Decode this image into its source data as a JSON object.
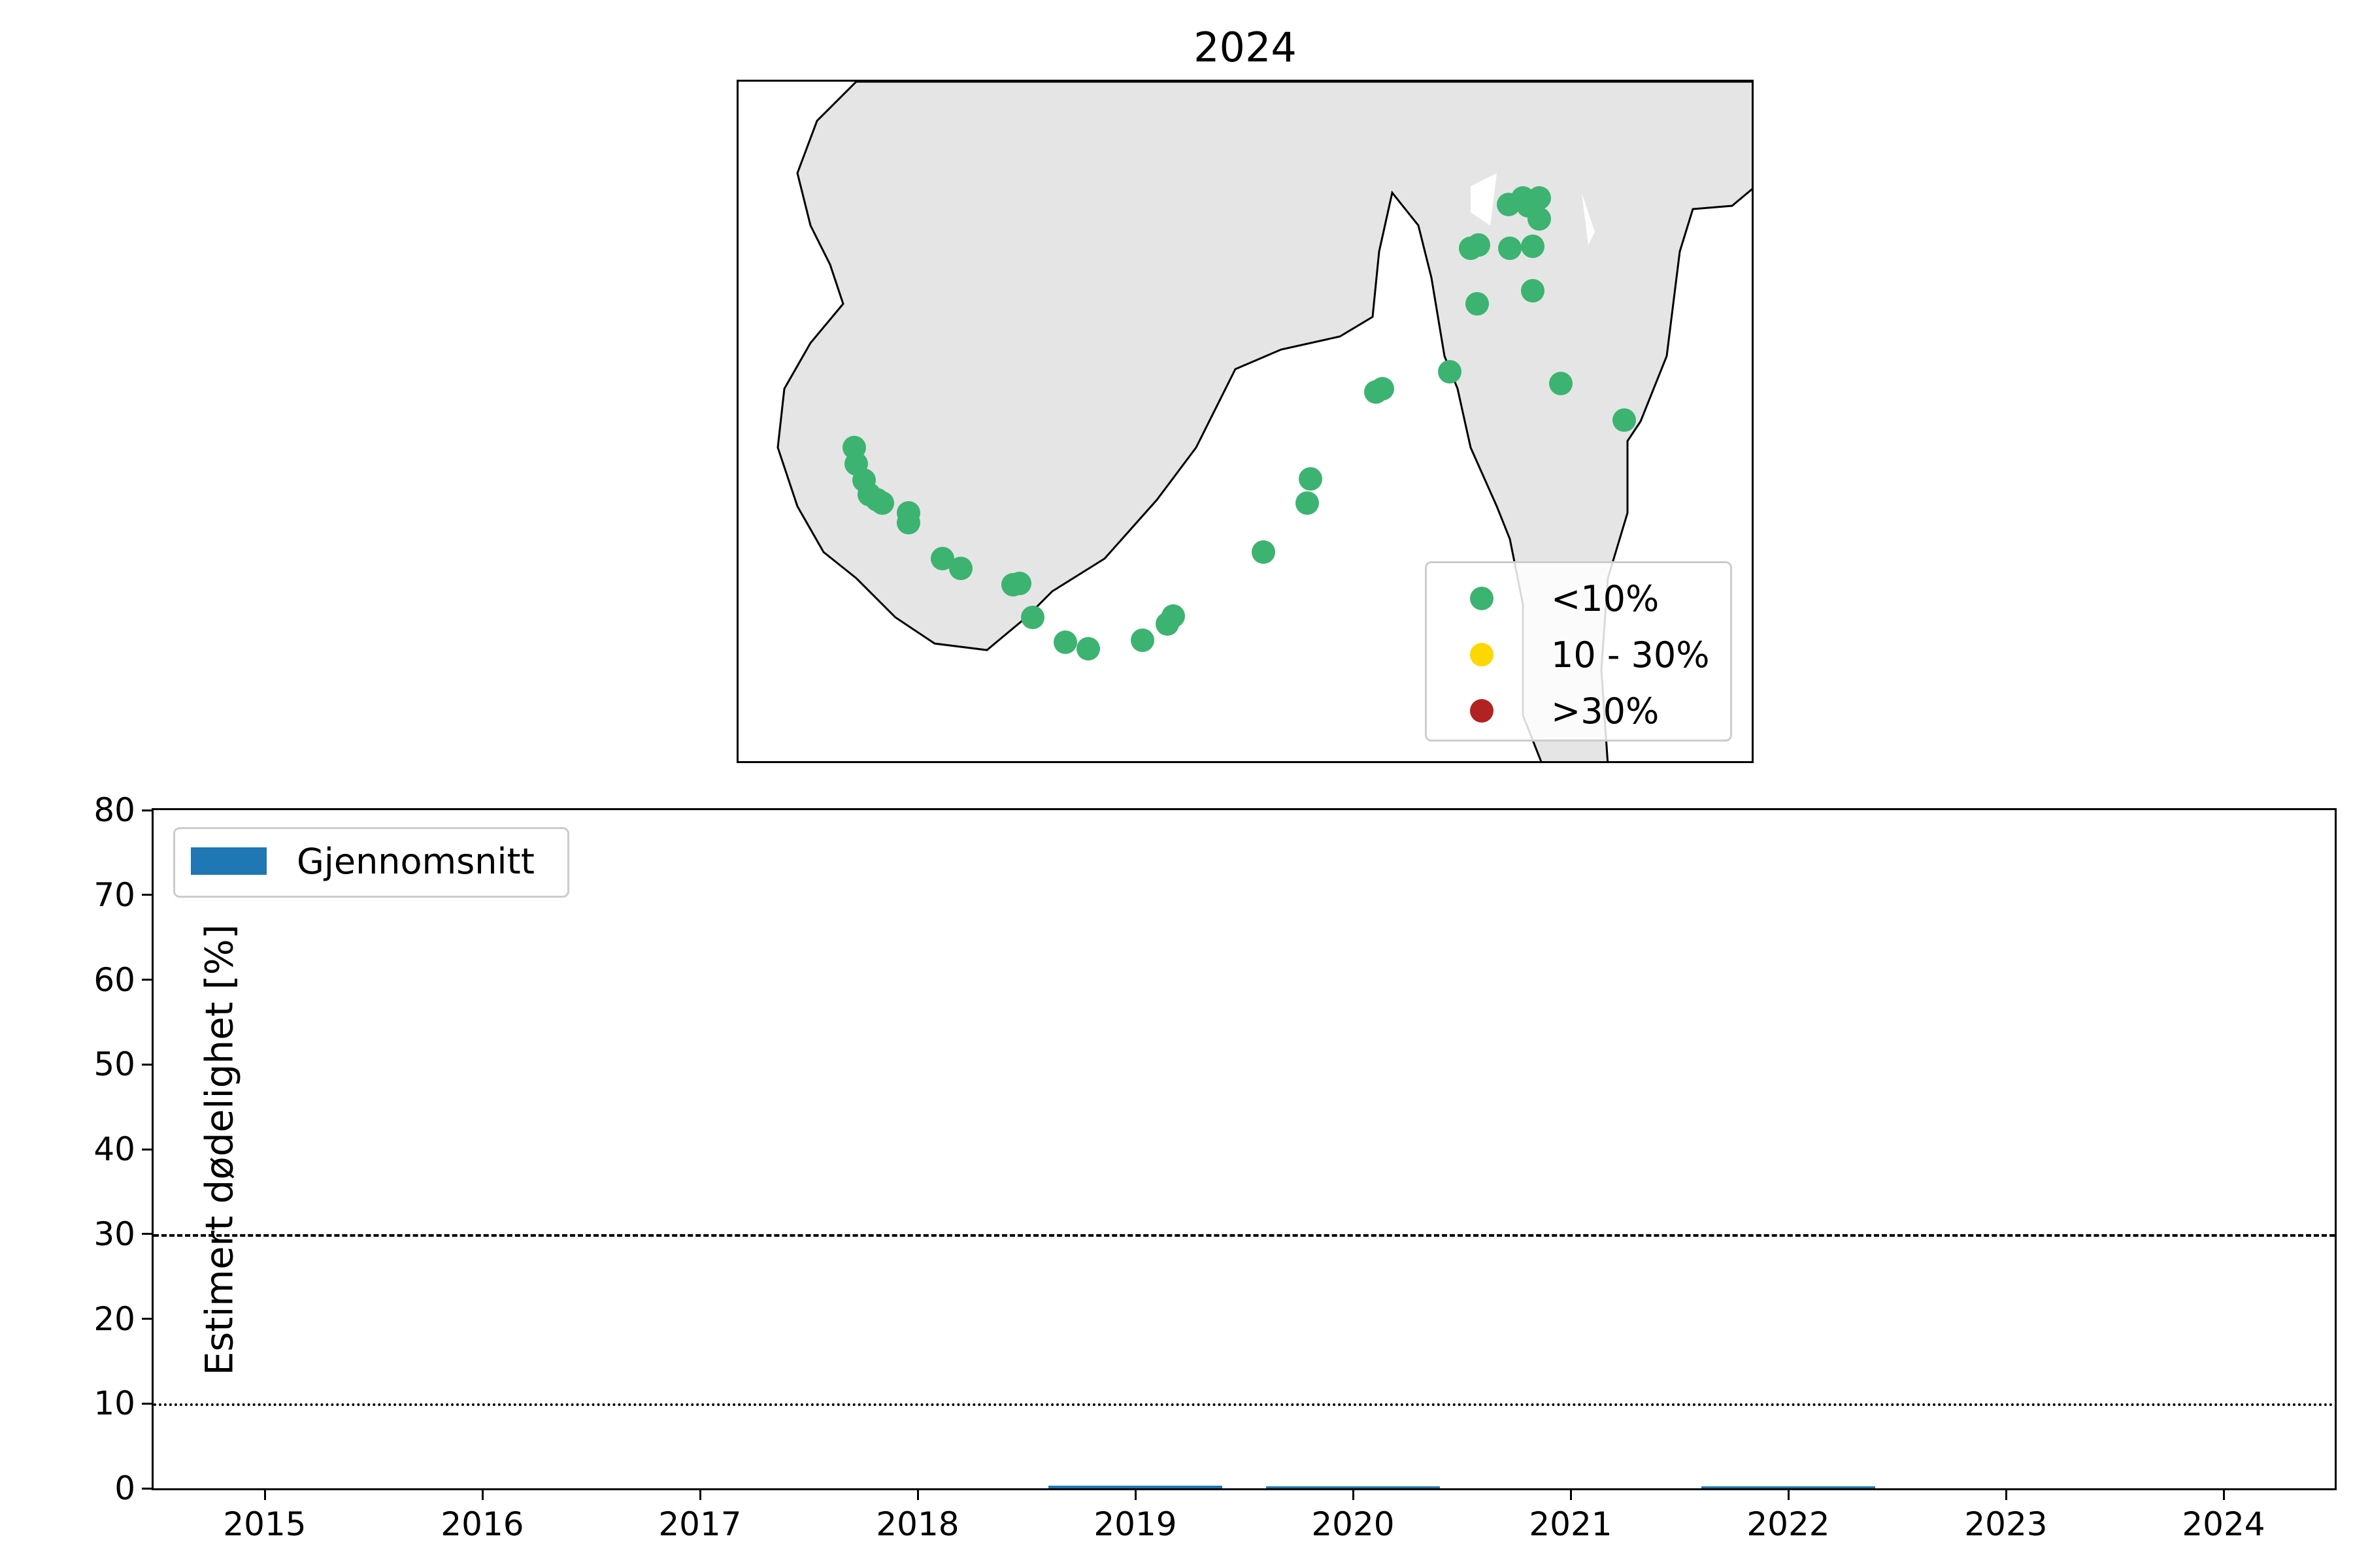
{
  "map": {
    "title": "2024",
    "legend": [
      {
        "label": "<10%",
        "color": "#3cb371"
      },
      {
        "label": "10 - 30%",
        "color": "#ffd700"
      },
      {
        "label": ">30%",
        "color": "#b22222"
      }
    ],
    "land_color": "#e5e5e5",
    "marker_color": "#3cb371"
  },
  "chart_data": {
    "type": "bar",
    "title": "",
    "xlabel": "",
    "ylabel": "Estimert dødelighet [%]",
    "categories": [
      "2015",
      "2016",
      "2017",
      "2018",
      "2019",
      "2020",
      "2021",
      "2022",
      "2023",
      "2024"
    ],
    "series": [
      {
        "name": "Gjennomsnitt",
        "color": "#1f77b4",
        "values": [
          0,
          0,
          0,
          0,
          0.3,
          0.2,
          0,
          0.05,
          0,
          0
        ]
      }
    ],
    "ylim": [
      0,
      80
    ],
    "yticks": [
      "0",
      "10",
      "20",
      "30",
      "40",
      "50",
      "60",
      "70",
      "80"
    ],
    "reference_lines": [
      {
        "y": 30,
        "style": "dashed"
      },
      {
        "y": 10,
        "style": "dotted"
      }
    ],
    "legend_position": "upper left",
    "grid": false
  }
}
